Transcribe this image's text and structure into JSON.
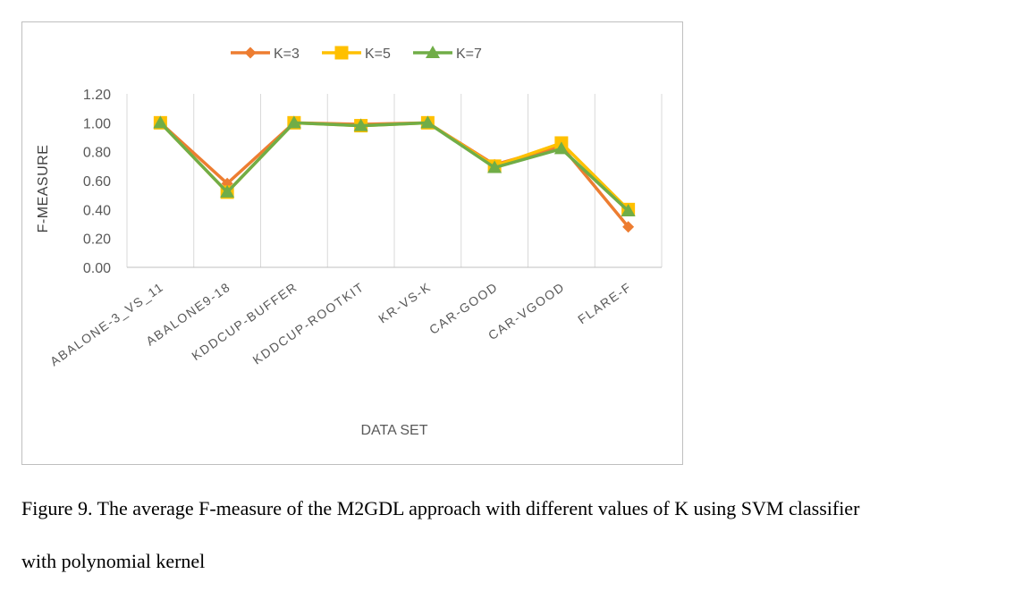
{
  "chart_data": {
    "type": "line",
    "categories": [
      "ABALONE-3_VS_11",
      "ABALONE9-18",
      "KDDCUP-BUFFER",
      "KDDCUP-ROOTKIT",
      "KR-VS-K",
      "CAR-GOOD",
      "CAR-VGOOD",
      "FLARE-F"
    ],
    "series": [
      {
        "name": "K=3",
        "color": "#ED7D31",
        "marker": "diamond",
        "values": [
          1.0,
          0.58,
          1.0,
          0.99,
          1.0,
          0.71,
          0.84,
          0.28
        ]
      },
      {
        "name": "K=5",
        "color": "#FFC000",
        "marker": "square",
        "values": [
          1.0,
          0.52,
          1.0,
          0.98,
          1.0,
          0.7,
          0.86,
          0.4
        ]
      },
      {
        "name": "K=7",
        "color": "#70AD47",
        "marker": "triangle",
        "values": [
          1.0,
          0.52,
          1.0,
          0.98,
          1.0,
          0.69,
          0.82,
          0.39
        ]
      }
    ],
    "yticks": [
      "0.00",
      "0.20",
      "0.40",
      "0.60",
      "0.80",
      "1.00",
      "1.20"
    ],
    "ylim": [
      0,
      1.2
    ],
    "xlabel": "DATA SET",
    "ylabel": "F-MEASURE",
    "legend_position": "top",
    "grid": "vertical"
  },
  "caption": {
    "line1": "Figure 9. The average F-measure of the M2GDL approach with different values of K using SVM classifier",
    "line2": "with polynomial kernel"
  }
}
